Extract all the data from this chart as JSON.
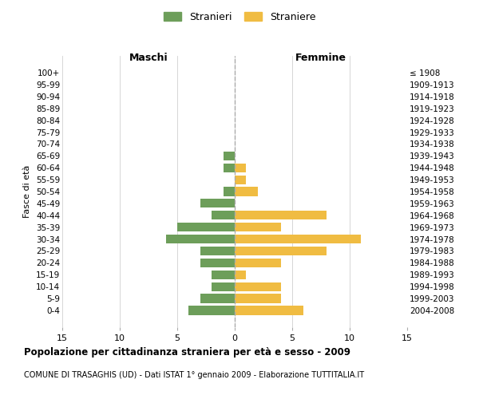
{
  "age_groups": [
    "100+",
    "95-99",
    "90-94",
    "85-89",
    "80-84",
    "75-79",
    "70-74",
    "65-69",
    "60-64",
    "55-59",
    "50-54",
    "45-49",
    "40-44",
    "35-39",
    "30-34",
    "25-29",
    "20-24",
    "15-19",
    "10-14",
    "5-9",
    "0-4"
  ],
  "birth_years": [
    "≤ 1908",
    "1909-1913",
    "1914-1918",
    "1919-1923",
    "1924-1928",
    "1929-1933",
    "1934-1938",
    "1939-1943",
    "1944-1948",
    "1949-1953",
    "1954-1958",
    "1959-1963",
    "1964-1968",
    "1969-1973",
    "1974-1978",
    "1979-1983",
    "1984-1988",
    "1989-1993",
    "1994-1998",
    "1999-2003",
    "2004-2008"
  ],
  "males": [
    0,
    0,
    0,
    0,
    0,
    0,
    0,
    1,
    1,
    0,
    1,
    3,
    2,
    5,
    6,
    3,
    3,
    2,
    2,
    3,
    4
  ],
  "females": [
    0,
    0,
    0,
    0,
    0,
    0,
    0,
    0,
    1,
    1,
    2,
    0,
    8,
    4,
    11,
    8,
    4,
    1,
    4,
    4,
    6
  ],
  "male_color": "#6d9e5a",
  "female_color": "#f0bc42",
  "xlim": 15,
  "title": "Popolazione per cittadinanza straniera per età e sesso - 2009",
  "subtitle": "COMUNE DI TRASAGHIS (UD) - Dati ISTAT 1° gennaio 2009 - Elaborazione TUTTITALIA.IT",
  "ylabel_left": "Fasce di età",
  "legend_male": "Stranieri",
  "legend_female": "Straniere",
  "maschi_label": "Maschi",
  "femmine_label": "Femmine",
  "bg_color": "#ffffff",
  "grid_color": "#d0d0d0",
  "bar_height": 0.75
}
